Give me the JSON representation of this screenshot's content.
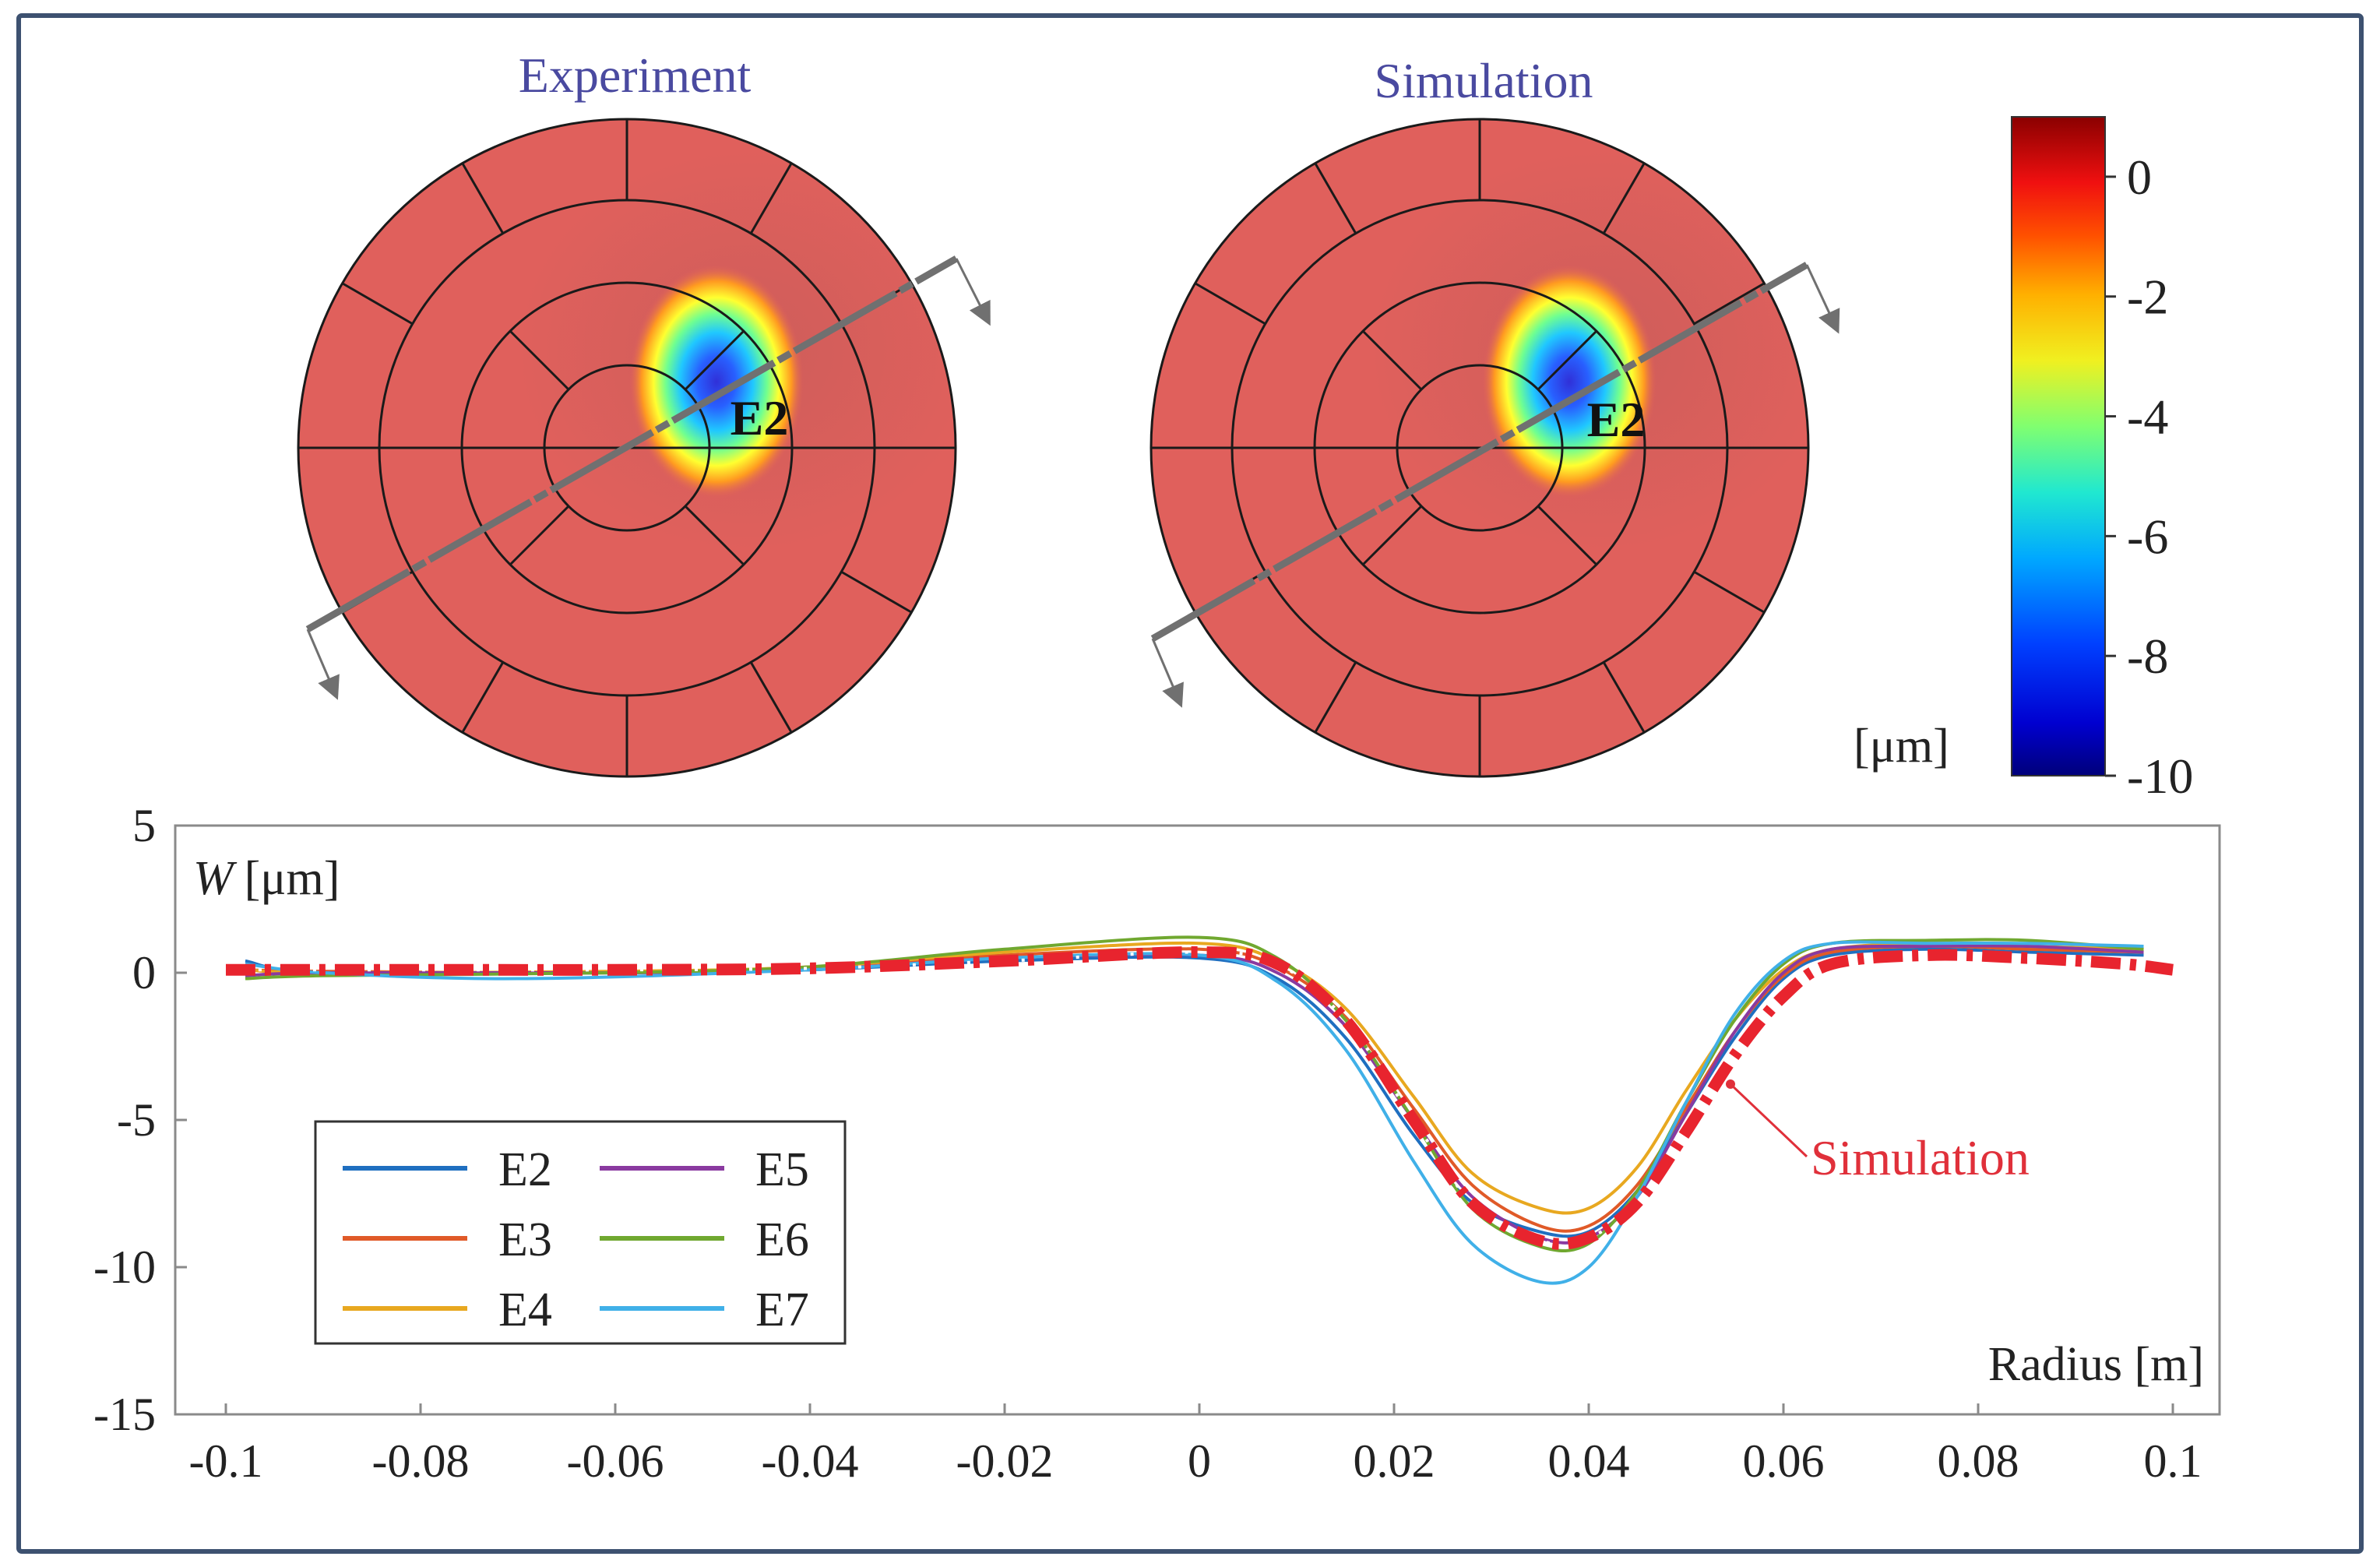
{
  "colors": {
    "frame": "#3d5170",
    "disc_fill": "#e0605c",
    "disc_shade": "#c9605a",
    "axis": "#7a7a7a",
    "title_text": "#4a4aa0",
    "simulation_label": "#e0303a",
    "scan_line": "#707070"
  },
  "maps": {
    "experiment": {
      "title": "Experiment",
      "electrode_label": "E2"
    },
    "simulation": {
      "title": "Simulation",
      "electrode_label": "E2"
    }
  },
  "colorbar": {
    "unit": "[μm]",
    "min": -10,
    "max": 1,
    "tick_labels": [
      "0",
      "-2",
      "-4",
      "-6",
      "-8",
      "-10"
    ],
    "tick_values": [
      0,
      -2,
      -4,
      -6,
      -8,
      -10
    ],
    "colormap": "jet"
  },
  "chart_data": {
    "type": "line",
    "title": "",
    "xlabel": "Radius [m]",
    "ylabel": "W [μm]",
    "ylabel_symbol": "W",
    "ylabel_unit": "[μm]",
    "xlim": [
      -0.1,
      0.1
    ],
    "ylim": [
      -15,
      5
    ],
    "x_ticks": [
      -0.1,
      -0.08,
      -0.06,
      -0.04,
      -0.02,
      0,
      0.02,
      0.04,
      0.06,
      0.08,
      0.1
    ],
    "x_tick_labels": [
      "-0.1",
      "-0.08",
      "-0.06",
      "-0.04",
      "-0.02",
      "0",
      "0.02",
      "0.04",
      "0.06",
      "0.08",
      "0.1"
    ],
    "y_ticks": [
      5,
      0,
      -5,
      -10,
      -15
    ],
    "y_tick_labels": [
      "5",
      "0",
      "-5",
      "-10",
      "-15"
    ],
    "grid": false,
    "legend_position": "bottom-left",
    "annotation": "Simulation",
    "series": [
      {
        "name": "E2",
        "color": "#1f6fc0",
        "points": [
          [
            -0.098,
            0.4
          ],
          [
            -0.09,
            0
          ],
          [
            -0.06,
            0
          ],
          [
            -0.04,
            0.1
          ],
          [
            -0.02,
            0.4
          ],
          [
            0,
            0.5
          ],
          [
            0.008,
            -0.2
          ],
          [
            0.015,
            -2.2
          ],
          [
            0.022,
            -5.5
          ],
          [
            0.028,
            -7.8
          ],
          [
            0.035,
            -8.8
          ],
          [
            0.04,
            -8.8
          ],
          [
            0.045,
            -7.4
          ],
          [
            0.05,
            -4.8
          ],
          [
            0.055,
            -2.2
          ],
          [
            0.06,
            -0.2
          ],
          [
            0.065,
            0.6
          ],
          [
            0.075,
            0.8
          ],
          [
            0.085,
            0.7
          ],
          [
            0.097,
            0.6
          ]
        ]
      },
      {
        "name": "E3",
        "color": "#e05a28",
        "points": [
          [
            -0.098,
            0.1
          ],
          [
            -0.09,
            0.05
          ],
          [
            -0.06,
            0
          ],
          [
            -0.04,
            0.2
          ],
          [
            -0.02,
            0.6
          ],
          [
            0,
            0.8
          ],
          [
            0.008,
            0.2
          ],
          [
            0.015,
            -1.5
          ],
          [
            0.022,
            -4.6
          ],
          [
            0.028,
            -7.2
          ],
          [
            0.035,
            -8.6
          ],
          [
            0.04,
            -8.6
          ],
          [
            0.045,
            -7.2
          ],
          [
            0.05,
            -4.6
          ],
          [
            0.055,
            -2.0
          ],
          [
            0.06,
            -0.1
          ],
          [
            0.065,
            0.7
          ],
          [
            0.075,
            0.9
          ],
          [
            0.085,
            0.8
          ],
          [
            0.097,
            0.7
          ]
        ]
      },
      {
        "name": "E4",
        "color": "#e8a820",
        "points": [
          [
            -0.098,
            0.1
          ],
          [
            -0.09,
            0
          ],
          [
            -0.06,
            0.05
          ],
          [
            -0.04,
            0.2
          ],
          [
            -0.02,
            0.7
          ],
          [
            0,
            1.0
          ],
          [
            0.008,
            0.4
          ],
          [
            0.015,
            -1.2
          ],
          [
            0.022,
            -4.2
          ],
          [
            0.028,
            -6.8
          ],
          [
            0.035,
            -8.0
          ],
          [
            0.04,
            -8.0
          ],
          [
            0.045,
            -6.6
          ],
          [
            0.05,
            -4.0
          ],
          [
            0.055,
            -1.6
          ],
          [
            0.06,
            0.1
          ],
          [
            0.065,
            0.8
          ],
          [
            0.075,
            1.0
          ],
          [
            0.085,
            0.9
          ],
          [
            0.097,
            0.8
          ]
        ]
      },
      {
        "name": "E5",
        "color": "#8a3aa0",
        "points": [
          [
            -0.098,
            -0.1
          ],
          [
            -0.09,
            0
          ],
          [
            -0.06,
            0
          ],
          [
            -0.04,
            0.1
          ],
          [
            -0.02,
            0.5
          ],
          [
            0,
            0.6
          ],
          [
            0.008,
            0
          ],
          [
            0.015,
            -1.8
          ],
          [
            0.022,
            -5.0
          ],
          [
            0.028,
            -7.6
          ],
          [
            0.035,
            -9.0
          ],
          [
            0.04,
            -9.0
          ],
          [
            0.045,
            -7.6
          ],
          [
            0.05,
            -4.8
          ],
          [
            0.055,
            -2.0
          ],
          [
            0.06,
            0
          ],
          [
            0.065,
            0.8
          ],
          [
            0.075,
            0.9
          ],
          [
            0.085,
            0.9
          ],
          [
            0.097,
            0.7
          ]
        ]
      },
      {
        "name": "E6",
        "color": "#70a830",
        "points": [
          [
            -0.098,
            -0.2
          ],
          [
            -0.09,
            -0.1
          ],
          [
            -0.06,
            0
          ],
          [
            -0.04,
            0.2
          ],
          [
            -0.02,
            0.8
          ],
          [
            0,
            1.2
          ],
          [
            0.008,
            0.5
          ],
          [
            0.015,
            -1.6
          ],
          [
            0.022,
            -5.0
          ],
          [
            0.028,
            -8.0
          ],
          [
            0.035,
            -9.3
          ],
          [
            0.04,
            -9.2
          ],
          [
            0.045,
            -7.4
          ],
          [
            0.05,
            -4.4
          ],
          [
            0.055,
            -1.6
          ],
          [
            0.06,
            0.3
          ],
          [
            0.065,
            1.0
          ],
          [
            0.075,
            1.1
          ],
          [
            0.085,
            1.1
          ],
          [
            0.097,
            0.8
          ]
        ]
      },
      {
        "name": "E7",
        "color": "#40b0e8",
        "points": [
          [
            -0.098,
            0.3
          ],
          [
            -0.09,
            0
          ],
          [
            -0.07,
            -0.2
          ],
          [
            -0.04,
            0.1
          ],
          [
            -0.02,
            0.5
          ],
          [
            0,
            0.6
          ],
          [
            0.008,
            -0.3
          ],
          [
            0.015,
            -2.6
          ],
          [
            0.022,
            -6.4
          ],
          [
            0.028,
            -9.2
          ],
          [
            0.035,
            -10.5
          ],
          [
            0.04,
            -10.0
          ],
          [
            0.045,
            -7.6
          ],
          [
            0.05,
            -4.4
          ],
          [
            0.055,
            -1.4
          ],
          [
            0.06,
            0.4
          ],
          [
            0.065,
            1.0
          ],
          [
            0.075,
            1.0
          ],
          [
            0.085,
            1.0
          ],
          [
            0.097,
            0.9
          ]
        ]
      },
      {
        "name": "Simulation",
        "color": "#e8242e",
        "dashed": true,
        "points": [
          [
            -0.1,
            0.1
          ],
          [
            -0.08,
            0.1
          ],
          [
            -0.06,
            0.1
          ],
          [
            -0.04,
            0.15
          ],
          [
            -0.02,
            0.4
          ],
          [
            0,
            0.7
          ],
          [
            0.008,
            0.3
          ],
          [
            0.015,
            -1.6
          ],
          [
            0.022,
            -5.0
          ],
          [
            0.028,
            -7.8
          ],
          [
            0.035,
            -9.1
          ],
          [
            0.04,
            -9.0
          ],
          [
            0.045,
            -7.8
          ],
          [
            0.05,
            -5.4
          ],
          [
            0.055,
            -2.8
          ],
          [
            0.06,
            -0.8
          ],
          [
            0.065,
            0.3
          ],
          [
            0.075,
            0.6
          ],
          [
            0.085,
            0.5
          ],
          [
            0.095,
            0.3
          ],
          [
            0.1,
            0.1
          ]
        ]
      }
    ]
  }
}
